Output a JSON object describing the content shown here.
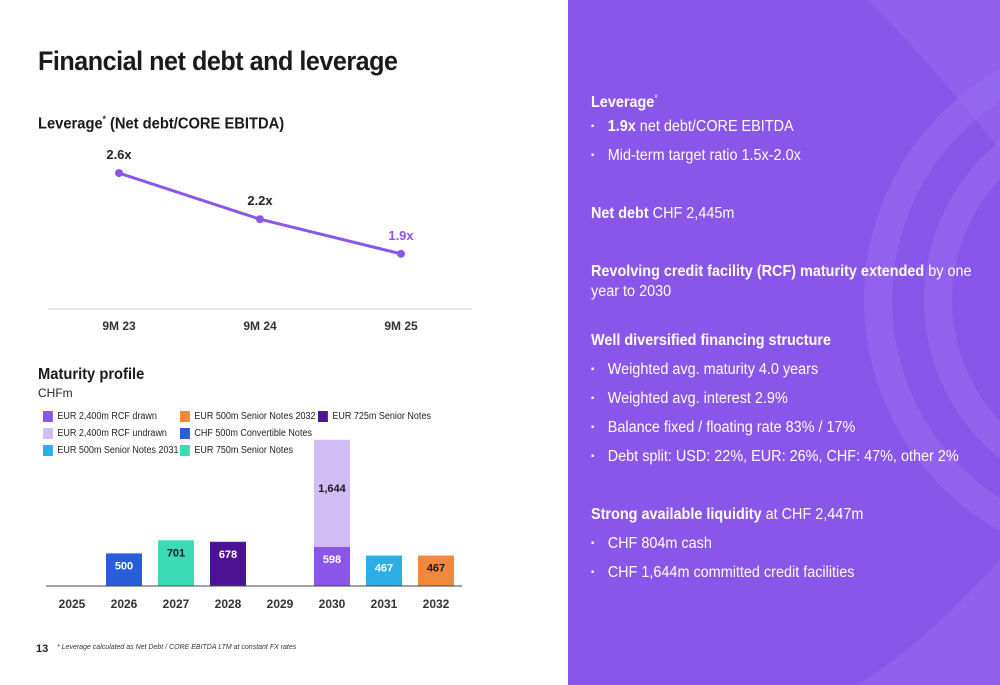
{
  "slide": {
    "title": "Financial net debt and leverage",
    "page_number": "13",
    "footnote": "* Leverage calculated as Net Debt / CORE EBITDA LTM at constant FX rates"
  },
  "leverage": {
    "heading": "Leverage",
    "heading_sup": "*",
    "heading_rest": " (Net debt/CORE EBITDA)"
  },
  "maturity": {
    "heading": "Maturity profile",
    "unit": "CHFm"
  },
  "colors": {
    "purple": "#8a56ea",
    "light_purple": "#d1bcf5",
    "dark_purple": "#4c1394",
    "blue": "#2a5ed8",
    "cyan": "#2daee6",
    "teal": "#3bdcb5",
    "orange": "#f0883e"
  },
  "chart_data": [
    {
      "type": "line",
      "title": "Leverage* (Net debt/CORE EBITDA)",
      "categories": [
        "9M 23",
        "9M 24",
        "9M 25"
      ],
      "values": [
        2.6,
        2.2,
        1.9
      ],
      "labels": [
        "2.6x",
        "2.2x",
        "1.9x"
      ],
      "ylim": [
        1.5,
        2.8
      ]
    },
    {
      "type": "bar",
      "stacked": true,
      "title": "Maturity profile",
      "ylabel": "CHFm",
      "ylim": [
        0,
        2300
      ],
      "categories": [
        "2025",
        "2026",
        "2027",
        "2028",
        "2029",
        "2030",
        "2031",
        "2032"
      ],
      "legend": [
        {
          "name": "EUR 2,400m RCF drawn",
          "color": "#8a56ea"
        },
        {
          "name": "EUR 2,400m RCF undrawn",
          "color": "#d1bcf5"
        },
        {
          "name": "EUR 500m Senior Notes 2031",
          "color": "#2daee6"
        },
        {
          "name": "EUR 500m Senior Notes 2032",
          "color": "#f0883e"
        },
        {
          "name": "CHF 500m Convertible Notes",
          "color": "#2a5ed8"
        },
        {
          "name": "EUR 750m Senior Notes",
          "color": "#3bdcb5"
        },
        {
          "name": "EUR 725m Senior Notes",
          "color": "#4c1394"
        }
      ],
      "bars": [
        {
          "category": "2026",
          "segments": [
            {
              "series": "CHF 500m Convertible Notes",
              "value": 500,
              "label": "500",
              "color": "#2a5ed8",
              "text": "#ffffff"
            }
          ]
        },
        {
          "category": "2027",
          "segments": [
            {
              "series": "EUR 750m Senior Notes",
              "value": 701,
              "label": "701",
              "color": "#3bdcb5",
              "text": "#1a1a1a"
            }
          ]
        },
        {
          "category": "2028",
          "segments": [
            {
              "series": "EUR 725m Senior Notes",
              "value": 678,
              "label": "678",
              "color": "#4c1394",
              "text": "#ffffff"
            }
          ]
        },
        {
          "category": "2030",
          "segments": [
            {
              "series": "EUR 2,400m RCF drawn",
              "value": 598,
              "label": "598",
              "color": "#8a56ea",
              "text": "#ffffff"
            },
            {
              "series": "EUR 2,400m RCF undrawn",
              "value": 1644,
              "label": "1,644",
              "color": "#d1bcf5",
              "text": "#1a1a1a"
            }
          ]
        },
        {
          "category": "2031",
          "segments": [
            {
              "series": "EUR 500m Senior Notes 2031",
              "value": 467,
              "label": "467",
              "color": "#2daee6",
              "text": "#ffffff"
            }
          ]
        },
        {
          "category": "2032",
          "segments": [
            {
              "series": "EUR 500m Senior Notes 2032",
              "value": 467,
              "label": "467",
              "color": "#f0883e",
              "text": "#1a1a1a"
            }
          ]
        }
      ]
    }
  ],
  "panel": {
    "leverage_heading": "Leverage",
    "leverage_sup": "*",
    "leverage_value": "1.9x",
    "leverage_value_rest": " net debt/CORE EBITDA",
    "target": "Mid-term target ratio 1.5x-2.0x",
    "net_debt_bold": "Net debt",
    "net_debt_rest": " CHF 2,445m",
    "rcf_bold": "Revolving credit facility (RCF) maturity extended",
    "rcf_rest": " by one year to 2030",
    "structure_heading": "Well diversified financing structure",
    "structure_items": [
      "Weighted avg. maturity 4.0 years",
      "Weighted avg. interest 2.9%",
      "Balance fixed / floating rate 83% / 17%",
      "Debt split: USD: 22%, EUR: 26%, CHF: 47%, other 2%"
    ],
    "liquidity_bold": "Strong available liquidity",
    "liquidity_rest": " at CHF 2,447m",
    "liquidity_items": [
      "CHF 804m cash",
      "CHF 1,644m committed credit facilities"
    ]
  }
}
